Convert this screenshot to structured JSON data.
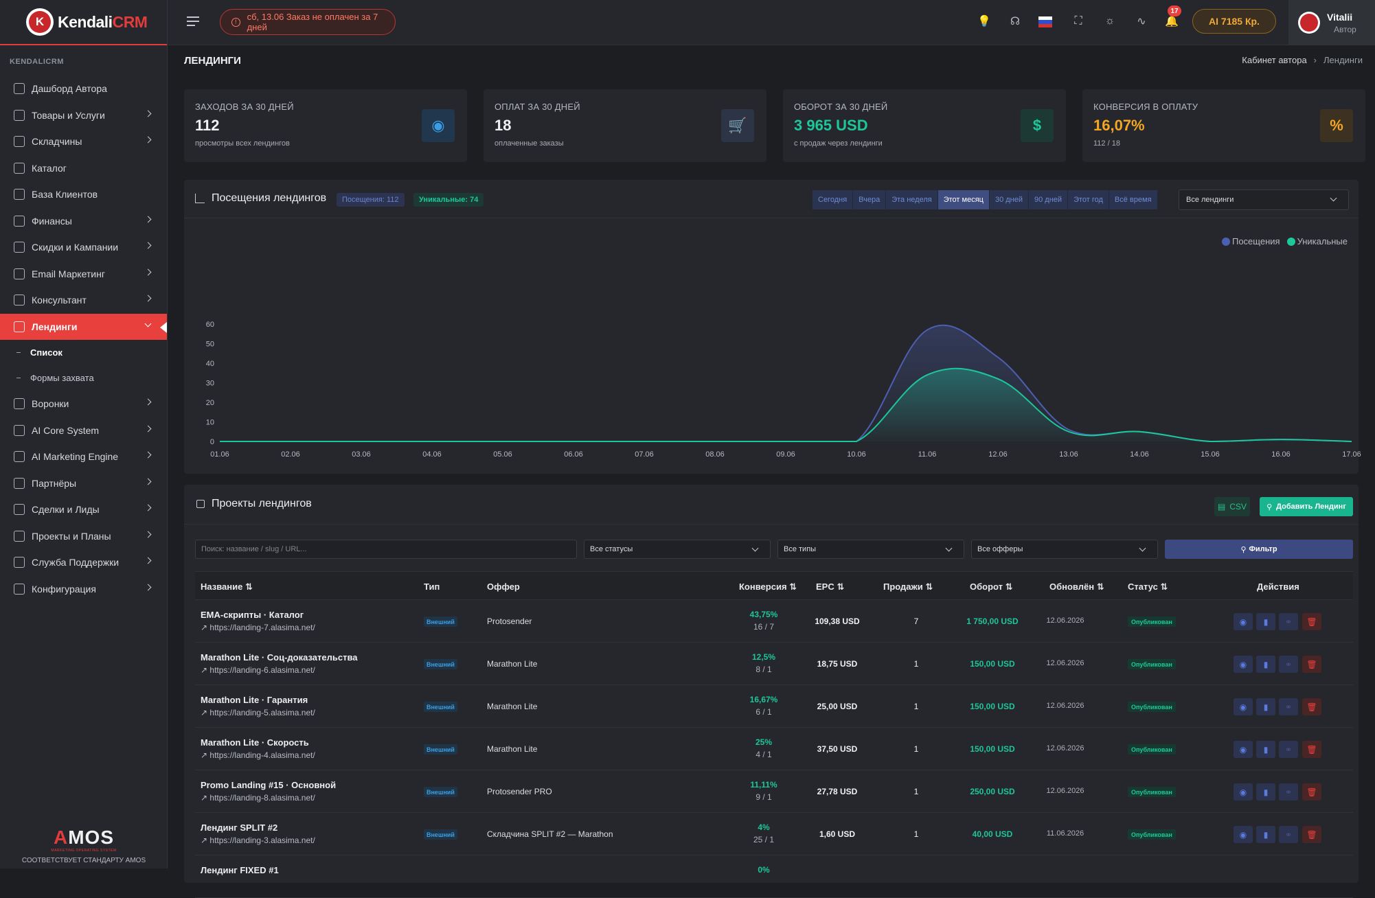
{
  "app": {
    "logo_main": "Kendali",
    "logo_accent": "CRM"
  },
  "sidebar": {
    "section_title": "KENDALICRM",
    "items": [
      {
        "label": "Дашборд Автора",
        "has_children": false
      },
      {
        "label": "Товары и Услуги",
        "has_children": true
      },
      {
        "label": "Складчины",
        "has_children": true
      },
      {
        "label": "Каталог",
        "has_children": false
      },
      {
        "label": "База Клиентов",
        "has_children": false
      },
      {
        "label": "Финансы",
        "has_children": true
      },
      {
        "label": "Скидки и Кампании",
        "has_children": true
      },
      {
        "label": "Email Маркетинг",
        "has_children": true
      },
      {
        "label": "Консультант",
        "has_children": true
      },
      {
        "label": "Лендинги",
        "has_children": true,
        "active": true
      }
    ],
    "subitems": [
      {
        "label": "Список",
        "current": true
      },
      {
        "label": "Формы захвата",
        "current": false
      }
    ],
    "items_after": [
      {
        "label": "Воронки"
      },
      {
        "label": "AI Core System"
      },
      {
        "label": "AI Marketing Engine"
      },
      {
        "label": "Партнёры"
      },
      {
        "label": "Сделки и Лиды"
      },
      {
        "label": "Проекты и Планы"
      },
      {
        "label": "Служба Поддержки"
      },
      {
        "label": "Конфигурация"
      }
    ],
    "footer": {
      "brand": "MOS",
      "brand_a": "A",
      "tagline": "MARKETING OPERATING SYSTEM",
      "standard": "СООТВЕТСТВУЕТ СТАНДАРТУ AMOS"
    }
  },
  "topbar": {
    "alert": "сб, 13.06  Заказ не оплачен за 7 дней",
    "notifications_count": "17",
    "ai_credits": "AI 7185 Кр.",
    "user": {
      "name": "Vitalii",
      "role": "Автор"
    },
    "icons": [
      "lightbulb-icon",
      "headset-icon",
      "flag-ru-icon",
      "fullscreen-icon",
      "theme-icon",
      "activity-icon",
      "bell-icon"
    ]
  },
  "page": {
    "title": "ЛЕНДИНГИ",
    "breadcrumb": [
      "Кабинет автора",
      "Лендинги"
    ]
  },
  "kpis": [
    {
      "label": "ЗАХОДОВ ЗА 30 ДНЕЙ",
      "value": "112",
      "sub": "просмотры всех лендингов",
      "value_color": "#f1f2f4",
      "icon": "eye-icon",
      "icon_bg": "#20374d",
      "icon_color": "#3a9de6",
      "glyph": "◉"
    },
    {
      "label": "ОПЛАТ ЗА 30 ДНЕЙ",
      "value": "18",
      "sub": "оплаченные заказы",
      "value_color": "#f1f2f4",
      "icon": "cart-icon",
      "icon_bg": "#2c3446",
      "icon_color": "#4f66b0",
      "glyph": "🛒"
    },
    {
      "label": "ОБОРОТ ЗА 30 ДНЕЙ",
      "value": "3 965 USD",
      "sub": "с продаж через лендинги",
      "value_color": "#1dc79b",
      "icon": "dollar-icon",
      "icon_bg": "#1c3a33",
      "icon_color": "#1dc79b",
      "glyph": "$"
    },
    {
      "label": "КОНВЕРСИЯ В ОПЛАТУ",
      "value": "16,07%",
      "sub": "112 / 18",
      "value_color": "#f5a623",
      "icon": "percent-icon",
      "icon_bg": "#3d3222",
      "icon_color": "#f5a623",
      "glyph": "%"
    }
  ],
  "visits": {
    "title": "Посещения лендингов",
    "badge_visits": "Посещения: 112",
    "badge_unique": "Уникальные: 74",
    "periods": [
      "Сегодня",
      "Вчера",
      "Эта неделя",
      "Этот месяц",
      "30 дней",
      "90 дней",
      "Этот год",
      "Всё время"
    ],
    "active_period": "Этот месяц",
    "landing_select": "Все лендинги"
  },
  "chart_data": {
    "type": "area",
    "x": [
      "01.06",
      "02.06",
      "03.06",
      "04.06",
      "05.06",
      "06.06",
      "07.06",
      "08.06",
      "09.06",
      "10.06",
      "11.06",
      "12.06",
      "13.06",
      "14.06",
      "15.06",
      "16.06",
      "17.06"
    ],
    "series": [
      {
        "name": "Посещения",
        "color": "#4d5fb0",
        "values": [
          0,
          0,
          0,
          0,
          0,
          0,
          0,
          0,
          0,
          0,
          57,
          43,
          6,
          5,
          0,
          1,
          0
        ]
      },
      {
        "name": "Уникальные",
        "color": "#1dc79b",
        "values": [
          0,
          0,
          0,
          0,
          0,
          0,
          0,
          0,
          0,
          0,
          34,
          32,
          5,
          5,
          0,
          1,
          0
        ]
      }
    ],
    "ylim": [
      0,
      60
    ],
    "yticks": [
      0,
      10,
      20,
      30,
      40,
      50,
      60
    ],
    "legend": "top-right",
    "grid": false
  },
  "projects": {
    "title": "Проекты лендингов",
    "csv_label": "CSV",
    "add_label": "Добавить Лендинг",
    "search_placeholder": "Поиск: название / slug / URL...",
    "status_filter": "Все статусы",
    "type_filter": "Все типы",
    "offer_filter": "Все офферы",
    "filter_label": "Фильтр",
    "columns": {
      "name": "Название ⇅",
      "type": "Тип",
      "offer": "Оффер",
      "conv": "Конверсия ⇅",
      "epc": "EPC ⇅",
      "sales": "Продажи ⇅",
      "turnover": "Оборот ⇅",
      "updated": "Обновлён ⇅",
      "status": "Статус ⇅",
      "actions": "Действия"
    },
    "rows": [
      {
        "name": "EMA-скрипты · Каталог",
        "url": "https://landing-7.alasima.net/",
        "type": "Внешний",
        "offer": "Protosender",
        "conv": "43,75%",
        "conv2": "16 / 7",
        "epc": "109,38 USD",
        "sales": "7",
        "turnover": "1 750,00 USD",
        "updated": "12.06.2026",
        "status": "Опубликован"
      },
      {
        "name": "Marathon Lite · Соц-доказательства",
        "url": "https://landing-6.alasima.net/",
        "type": "Внешний",
        "offer": "Marathon Lite",
        "conv": "12,5%",
        "conv2": "8 / 1",
        "epc": "18,75 USD",
        "sales": "1",
        "turnover": "150,00 USD",
        "updated": "12.06.2026",
        "status": "Опубликован"
      },
      {
        "name": "Marathon Lite · Гарантия",
        "url": "https://landing-5.alasima.net/",
        "type": "Внешний",
        "offer": "Marathon Lite",
        "conv": "16,67%",
        "conv2": "6 / 1",
        "epc": "25,00 USD",
        "sales": "1",
        "turnover": "150,00 USD",
        "updated": "12.06.2026",
        "status": "Опубликован"
      },
      {
        "name": "Marathon Lite · Скорость",
        "url": "https://landing-4.alasima.net/",
        "type": "Внешний",
        "offer": "Marathon Lite",
        "conv": "25%",
        "conv2": "4 / 1",
        "epc": "37,50 USD",
        "sales": "1",
        "turnover": "150,00 USD",
        "updated": "12.06.2026",
        "status": "Опубликован"
      },
      {
        "name": "Promo Landing #15 · Основной",
        "url": "https://landing-8.alasima.net/",
        "type": "Внешний",
        "offer": "Protosender PRO",
        "conv": "11,11%",
        "conv2": "9 / 1",
        "epc": "27,78 USD",
        "sales": "1",
        "turnover": "250,00 USD",
        "updated": "12.06.2026",
        "status": "Опубликован"
      },
      {
        "name": "Лендинг SPLIT #2",
        "url": "https://landing-3.alasima.net/",
        "type": "Внешний",
        "offer": "Складчина SPLIT #2 — Marathon",
        "conv": "4%",
        "conv2": "25 / 1",
        "epc": "1,60 USD",
        "sales": "1",
        "turnover": "40,00 USD",
        "updated": "11.06.2026",
        "status": "Опубликован"
      },
      {
        "name": "Лендинг FIXED #1",
        "url": "",
        "type": "",
        "offer": "",
        "conv": "0%",
        "conv2": "",
        "epc": "",
        "sales": "",
        "turnover": "",
        "updated": "",
        "status": ""
      }
    ]
  }
}
